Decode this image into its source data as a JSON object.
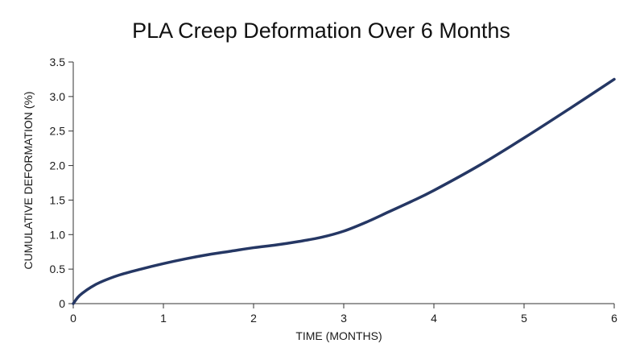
{
  "chart_data": {
    "type": "line",
    "title": "PLA Creep Deformation Over 6 Months",
    "xlabel": "TIME (MONTHS)",
    "ylabel": "CUMULATIVE DEFORMATION (%)",
    "xlim": [
      0,
      6
    ],
    "ylim": [
      0,
      3.5
    ],
    "x_ticks": [
      "0",
      "1",
      "2",
      "3",
      "4",
      "5",
      "6"
    ],
    "y_ticks": [
      "0",
      "0.5",
      "1.0",
      "1.5",
      "2.0",
      "2.5",
      "3.0",
      "3.5"
    ],
    "grid": false,
    "legend": "none",
    "series": [
      {
        "color": "#253764",
        "x": [
          0,
          0.05,
          0.1,
          0.2,
          0.3,
          0.5,
          0.75,
          1.0,
          1.25,
          1.5,
          1.75,
          2.0,
          2.25,
          2.5,
          2.75,
          3.0,
          3.25,
          3.5,
          3.75,
          4.0,
          4.5,
          5.0,
          5.5,
          6.0
        ],
        "y": [
          0,
          0.09,
          0.15,
          0.24,
          0.31,
          0.41,
          0.5,
          0.58,
          0.65,
          0.71,
          0.76,
          0.81,
          0.85,
          0.9,
          0.96,
          1.05,
          1.18,
          1.33,
          1.48,
          1.64,
          2.0,
          2.4,
          2.82,
          3.25
        ]
      }
    ]
  }
}
